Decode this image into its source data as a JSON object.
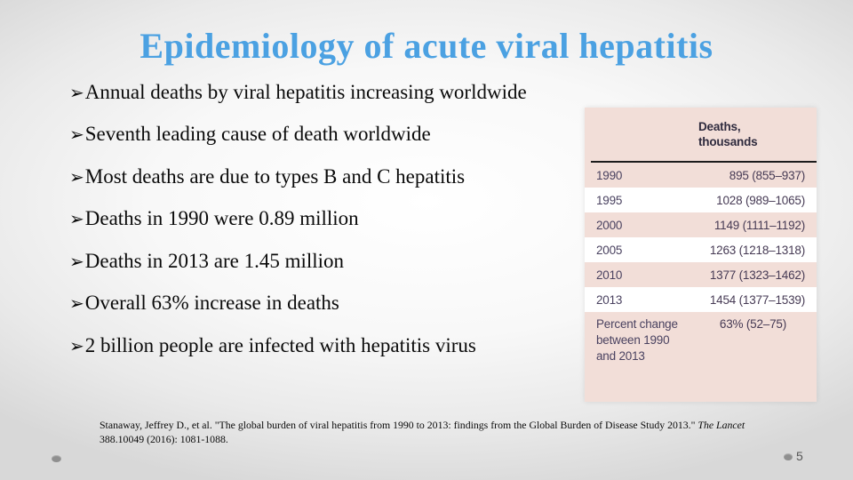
{
  "slide": {
    "title": "Epidemiology of acute viral hepatitis",
    "title_color": "#4ba1e2",
    "bullet_char": "➢",
    "bullets": [
      "Annual deaths by viral hepatitis increasing worldwide",
      "Seventh leading cause of death worldwide",
      "Most deaths are due to types B and C hepatitis",
      "Deaths in 1990 were 0.89 million",
      "Deaths in 2013  are 1.45 million",
      "Overall 63% increase in deaths",
      "2 billion people are infected with hepatitis virus"
    ]
  },
  "table": {
    "header": "Deaths, thousands",
    "rows": [
      {
        "label": "1990",
        "value": "895 (855–937)"
      },
      {
        "label": "1995",
        "value": "1028 (989–1065)"
      },
      {
        "label": "2000",
        "value": "1149 (1111–1192)"
      },
      {
        "label": "2005",
        "value": "1263 (1218–1318)"
      },
      {
        "label": "2010",
        "value": "1377 (1323–1462)"
      },
      {
        "label": "2013",
        "value": "1454 (1377–1539)"
      },
      {
        "label": "Percent change between 1990 and 2013",
        "value": "63% (52–75)"
      }
    ],
    "colors": {
      "pink": "#f2ded8",
      "white": "#ffffff",
      "text": "#4a4260",
      "header_text": "#2f2b3e"
    }
  },
  "citation": {
    "prefix": "Stanaway, Jeffrey D., et al. \"The global burden of viral hepatitis from 1990 to 2013: findings from the Global Burden of Disease Study 2013.\" ",
    "journal": "The Lancet",
    "suffix": " 388.10049 (2016): 1081-1088."
  },
  "footer": {
    "page_number": "5"
  }
}
